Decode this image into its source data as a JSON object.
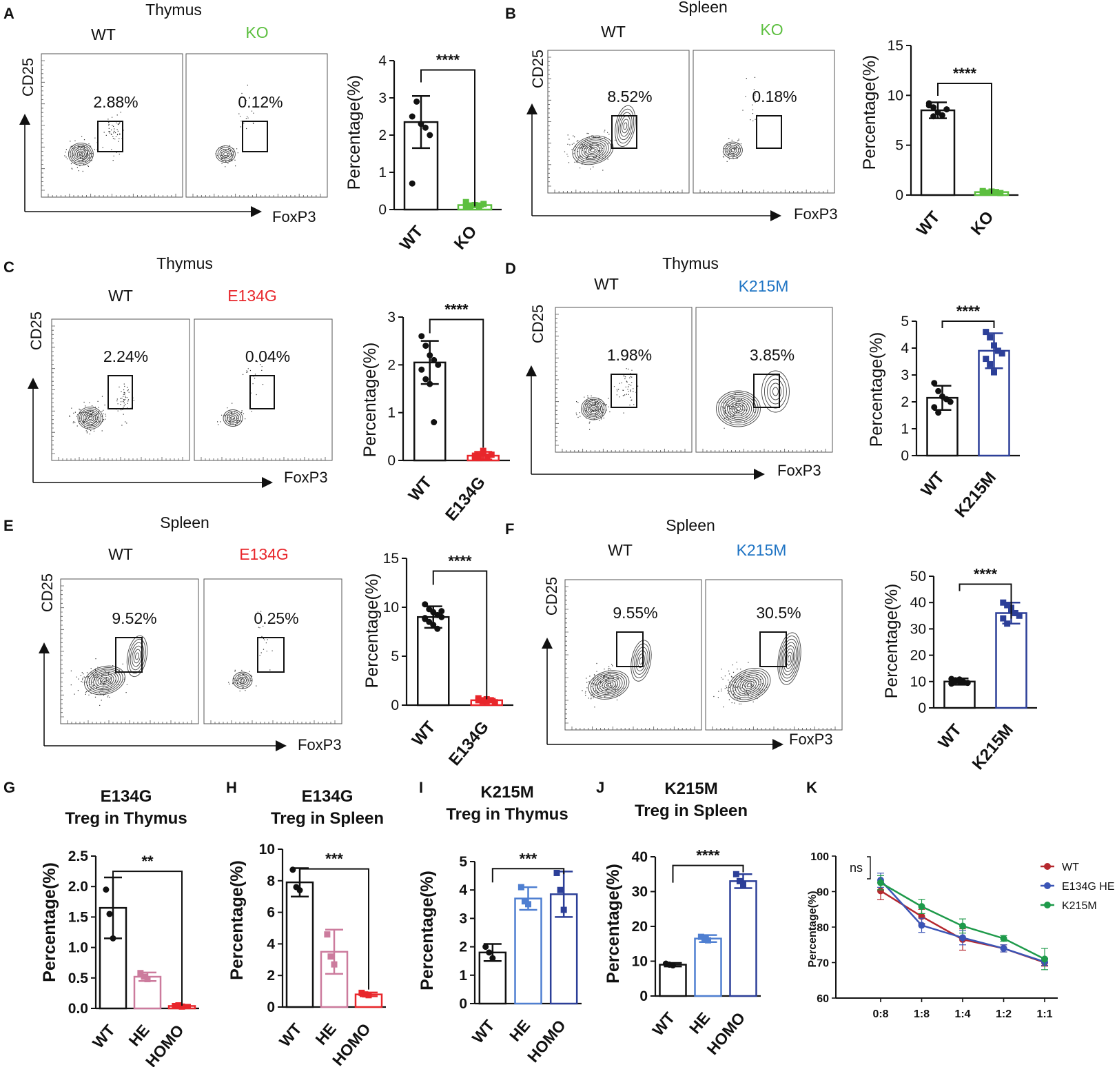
{
  "colors": {
    "black": "#111111",
    "ko_green": "#5cbf3f",
    "e134g_red": "#e8262b",
    "k215m_blue": "#1f74c4",
    "bar_blue": "#2c3f98",
    "he_pink": "#cc7b9d",
    "he_blue": "#4f7fd1",
    "line_red": "#b5282e",
    "line_blue": "#3b55b6",
    "line_green": "#1e9a4a"
  },
  "panels": [
    {
      "letter": "A",
      "title": "Thymus",
      "wt_label": "WT",
      "mut_label": "KO",
      "mut_color": "#5cbf3f",
      "wt_pct": "2.88%",
      "mut_pct": "0.12%",
      "ylabel": "CD25",
      "xlabel": "FoxP3",
      "flow_wt": "thymus",
      "flow_mut": "empty"
    },
    {
      "letter": "B",
      "title": "Spleen",
      "wt_label": "WT",
      "mut_label": "KO",
      "mut_color": "#5cbf3f",
      "wt_pct": "8.52%",
      "mut_pct": "0.18%",
      "ylabel": "CD25",
      "xlabel": "FoxP3",
      "flow_wt": "spleen",
      "flow_mut": "empty"
    },
    {
      "letter": "C",
      "title": "Thymus",
      "wt_label": "WT",
      "mut_label": "E134G",
      "mut_color": "#e8262b",
      "wt_pct": "2.24%",
      "mut_pct": "0.04%",
      "ylabel": "CD25",
      "xlabel": "FoxP3",
      "flow_wt": "thymus",
      "flow_mut": "empty"
    },
    {
      "letter": "D",
      "title": "Thymus",
      "wt_label": "WT",
      "mut_label": "K215M",
      "mut_color": "#1f74c4",
      "wt_pct": "1.98%",
      "mut_pct": "3.85%",
      "ylabel": "CD25",
      "xlabel": "FoxP3",
      "flow_wt": "thymus",
      "flow_mut": "thymus_big"
    },
    {
      "letter": "E",
      "title": "Spleen",
      "wt_label": "WT",
      "mut_label": "E134G",
      "mut_color": "#e8262b",
      "wt_pct": "9.52%",
      "mut_pct": "0.25%",
      "ylabel": "CD25",
      "xlabel": "FoxP3",
      "flow_wt": "spleen",
      "flow_mut": "empty"
    },
    {
      "letter": "F",
      "title": "Spleen",
      "wt_label": "WT",
      "mut_label": "K215M",
      "mut_color": "#1f74c4",
      "wt_pct": "9.55%",
      "mut_pct": "30.5%",
      "ylabel": "CD25",
      "xlabel": "FoxP3",
      "flow_wt": "spleen",
      "flow_mut": "spleen_big"
    },
    {
      "letter": "G",
      "title_line1": "E134G",
      "title_line2": "Treg in Thymus"
    },
    {
      "letter": "H",
      "title_line1": "E134G",
      "title_line2": "Treg in Spleen"
    },
    {
      "letter": "I",
      "title_line1": "K215M",
      "title_line2": "Treg in Thymus"
    },
    {
      "letter": "J",
      "title_line1": "K215M",
      "title_line2": "Treg in Spleen"
    },
    {
      "letter": "K"
    }
  ],
  "chart_data": [
    {
      "panel": "A",
      "type": "bar",
      "categories": [
        "WT",
        "KO"
      ],
      "values": [
        2.35,
        0.12
      ],
      "errors": [
        0.7,
        0.05
      ],
      "ylim": [
        0,
        4
      ],
      "yticks": [
        0,
        1,
        2,
        3,
        4
      ],
      "ylabel": "Percentage(%)",
      "significance": "****",
      "points": [
        [
          2.5,
          2.9,
          2.3,
          2.2,
          2.0,
          0.7
        ],
        [
          0.2,
          0.1,
          0.12,
          0.08,
          0.15,
          0.1
        ]
      ],
      "colors": [
        "#111111",
        "#5cbf3f"
      ]
    },
    {
      "panel": "B",
      "type": "bar",
      "categories": [
        "WT",
        "KO"
      ],
      "values": [
        8.5,
        0.3
      ],
      "errors": [
        0.8,
        0.1
      ],
      "ylim": [
        0,
        15
      ],
      "yticks": [
        0,
        5,
        10,
        15
      ],
      "ylabel": "Percentage(%)",
      "significance": "****",
      "points": [
        [
          9.2,
          8.8,
          8.3,
          8.0,
          8.6,
          9.0,
          7.9
        ],
        [
          0.3,
          0.25,
          0.35,
          0.3,
          0.2,
          0.4
        ]
      ],
      "colors": [
        "#111111",
        "#5cbf3f"
      ]
    },
    {
      "panel": "C",
      "type": "bar",
      "categories": [
        "WT",
        "E134G"
      ],
      "values": [
        2.05,
        0.1
      ],
      "errors": [
        0.45,
        0.08
      ],
      "ylim": [
        0,
        3
      ],
      "yticks": [
        0,
        1,
        2,
        3
      ],
      "ylabel": "Percentage(%)",
      "significance": "****",
      "points": [
        [
          2.6,
          2.4,
          2.2,
          2.1,
          2.0,
          1.9,
          1.7,
          1.6,
          0.8
        ],
        [
          0.1,
          0.05,
          0.15,
          0.08,
          0.12,
          0.06,
          0.1,
          0.2
        ]
      ],
      "colors": [
        "#111111",
        "#e8262b"
      ]
    },
    {
      "panel": "D",
      "type": "bar",
      "categories": [
        "WT",
        "K215M"
      ],
      "values": [
        2.15,
        3.9
      ],
      "errors": [
        0.45,
        0.65
      ],
      "ylim": [
        0,
        5
      ],
      "yticks": [
        0,
        1,
        2,
        3,
        4,
        5
      ],
      "ylabel": "Percentage(%)",
      "significance": "****",
      "points": [
        [
          2.7,
          2.4,
          2.2,
          2.1,
          2.0,
          1.8,
          1.6
        ],
        [
          4.6,
          4.4,
          4.1,
          3.9,
          3.8,
          3.6,
          3.4,
          3.1
        ]
      ],
      "colors": [
        "#111111",
        "#2c3f98"
      ]
    },
    {
      "panel": "E",
      "type": "bar",
      "categories": [
        "WT",
        "E134G"
      ],
      "values": [
        9.0,
        0.5
      ],
      "errors": [
        1.1,
        0.15
      ],
      "ylim": [
        0,
        15
      ],
      "yticks": [
        0,
        5,
        10,
        15
      ],
      "ylabel": "Percentage(%)",
      "significance": "****",
      "points": [
        [
          10.3,
          9.8,
          9.5,
          9.2,
          9.0,
          8.8,
          8.5,
          8.2,
          7.8,
          9.6,
          8.9
        ],
        [
          0.5,
          0.4,
          0.6,
          0.5,
          0.3,
          0.7,
          0.5,
          0.4
        ]
      ],
      "colors": [
        "#111111",
        "#e8262b"
      ]
    },
    {
      "panel": "F",
      "type": "bar",
      "categories": [
        "WT",
        "K215M"
      ],
      "values": [
        10.0,
        36.0
      ],
      "errors": [
        1.2,
        4.0
      ],
      "ylim": [
        0,
        50
      ],
      "yticks": [
        0,
        10,
        20,
        30,
        40,
        50
      ],
      "ylabel": "Percentage(%)",
      "significance": "****",
      "points": [
        [
          11,
          10.5,
          10,
          9.8,
          9.5,
          9.2,
          10.2,
          10.8
        ],
        [
          40,
          39,
          37,
          36,
          35,
          34,
          32,
          38
        ]
      ],
      "colors": [
        "#111111",
        "#2c3f98"
      ]
    },
    {
      "panel": "G",
      "type": "bar",
      "categories": [
        "WT",
        "HE",
        "HOMO"
      ],
      "values": [
        1.65,
        0.52,
        0.04
      ],
      "errors": [
        0.5,
        0.07,
        0.02
      ],
      "ylim": [
        0,
        2.5
      ],
      "yticks": [
        "0.0",
        "0.5",
        "1.0",
        "1.5",
        "2.0",
        "2.5"
      ],
      "ylabel": "Percentage(%)",
      "significance": "**",
      "points": [
        [
          1.95,
          1.55,
          1.15
        ],
        [
          0.58,
          0.52,
          0.48
        ],
        [
          0.04,
          0.05,
          0.03
        ]
      ],
      "colors": [
        "#111111",
        "#cc7b9d",
        "#e8262b"
      ]
    },
    {
      "panel": "H",
      "type": "bar",
      "categories": [
        "WT",
        "HE",
        "HOMO"
      ],
      "values": [
        7.9,
        3.5,
        0.8
      ],
      "errors": [
        0.9,
        1.4,
        0.12
      ],
      "ylim": [
        0,
        10
      ],
      "yticks": [
        0,
        2,
        4,
        6,
        8,
        10
      ],
      "ylabel": "Percentage(%)",
      "significance": "***",
      "points": [
        [
          8.7,
          7.6,
          7.4
        ],
        [
          4.6,
          3.2,
          2.7
        ],
        [
          0.9,
          0.8,
          0.75
        ]
      ],
      "colors": [
        "#111111",
        "#cc7b9d",
        "#e8262b"
      ]
    },
    {
      "panel": "I",
      "type": "bar",
      "categories": [
        "WT",
        "HE",
        "HOMO"
      ],
      "values": [
        1.8,
        3.7,
        3.85
      ],
      "errors": [
        0.3,
        0.4,
        0.8
      ],
      "ylim": [
        0,
        5
      ],
      "yticks": [
        0,
        1,
        2,
        3,
        4,
        5
      ],
      "ylabel": "Percentage(%)",
      "significance": "***",
      "points": [
        [
          2.0,
          1.8,
          1.6
        ],
        [
          4.1,
          3.6,
          3.5
        ],
        [
          4.6,
          4.0,
          3.3
        ]
      ],
      "colors": [
        "#111111",
        "#4f7fd1",
        "#2c3f98"
      ]
    },
    {
      "panel": "J",
      "type": "bar",
      "categories": [
        "WT",
        "HE",
        "HOMO"
      ],
      "values": [
        9.0,
        16.5,
        33.0
      ],
      "errors": [
        0.5,
        1.0,
        2.0
      ],
      "ylim": [
        0,
        40
      ],
      "yticks": [
        0,
        10,
        20,
        30,
        40
      ],
      "ylabel": "Percentage(%)",
      "significance": "****",
      "points": [
        [
          9.3,
          9.0,
          8.8
        ],
        [
          17.0,
          16.5,
          16.0
        ],
        [
          35.0,
          33.0,
          32.0
        ]
      ],
      "colors": [
        "#111111",
        "#4f7fd1",
        "#2c3f98"
      ]
    },
    {
      "panel": "K",
      "type": "line",
      "categories": [
        "0:8",
        "1:8",
        "1:4",
        "1:2",
        "1:1"
      ],
      "ylim": [
        60,
        100
      ],
      "yticks": [
        60,
        70,
        80,
        90,
        100
      ],
      "ylabel": "Percentage(%)",
      "annotation": "ns",
      "series": [
        {
          "name": "WT",
          "color": "#b5282e",
          "values": [
            90.2,
            83.0,
            76.5,
            74.0,
            70.0
          ],
          "errors": [
            2.5,
            2.0,
            3.0,
            1.0,
            1.0
          ]
        },
        {
          "name": "E134G HE",
          "color": "#3b55b6",
          "values": [
            93.2,
            80.5,
            77.0,
            74.0,
            70.2
          ],
          "errors": [
            2.0,
            2.0,
            2.0,
            1.0,
            1.0
          ]
        },
        {
          "name": "K215M",
          "color": "#1e9a4a",
          "values": [
            92.5,
            85.8,
            80.3,
            76.8,
            71.0
          ],
          "errors": [
            2.0,
            2.0,
            2.0,
            0.8,
            3.0
          ]
        }
      ]
    }
  ]
}
